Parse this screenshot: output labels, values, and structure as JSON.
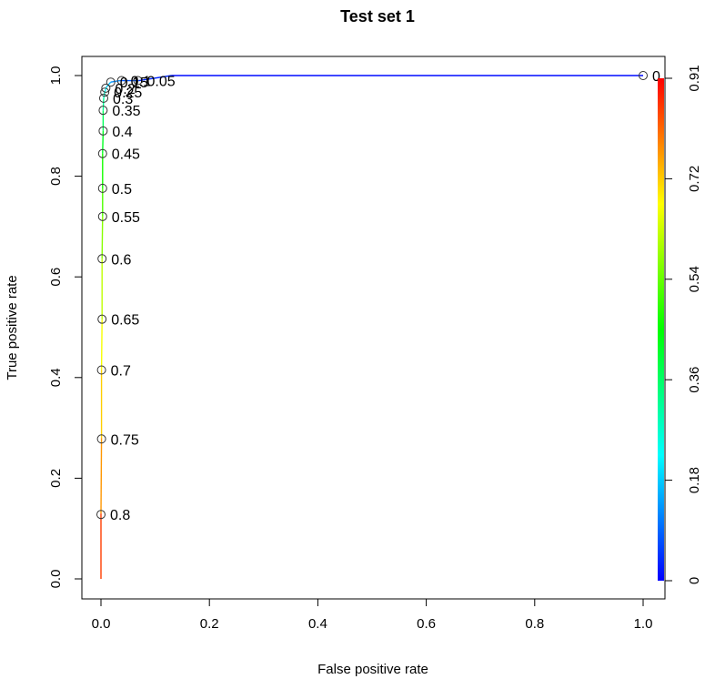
{
  "chart_data": {
    "type": "line",
    "title": "Test set 1",
    "xlabel": "False positive rate",
    "ylabel": "True positive rate",
    "xlim": [
      0,
      1
    ],
    "ylim": [
      0,
      1
    ],
    "x_ticks": [
      "0.0",
      "0.2",
      "0.4",
      "0.6",
      "0.8",
      "1.0"
    ],
    "y_ticks": [
      "0.0",
      "0.2",
      "0.4",
      "0.6",
      "0.8",
      "1.0"
    ],
    "colorbar": {
      "range": [
        0,
        0.91
      ],
      "ticks": [
        "0",
        "0.18",
        "0.36",
        "0.54",
        "0.72",
        "0.91"
      ],
      "colors": [
        "#0000ff",
        "#00ffff",
        "#00ff00",
        "#ffff00",
        "#ff0000"
      ]
    },
    "curve": [
      {
        "x": 0.0,
        "y": 0.0,
        "cutoff": 0.91
      },
      {
        "x": 0.0,
        "y": 0.13,
        "cutoff": 0.8
      },
      {
        "x": 0.001,
        "y": 0.28,
        "cutoff": 0.75
      },
      {
        "x": 0.001,
        "y": 0.415,
        "cutoff": 0.7
      },
      {
        "x": 0.002,
        "y": 0.515,
        "cutoff": 0.65
      },
      {
        "x": 0.002,
        "y": 0.636,
        "cutoff": 0.6
      },
      {
        "x": 0.003,
        "y": 0.72,
        "cutoff": 0.55
      },
      {
        "x": 0.003,
        "y": 0.775,
        "cutoff": 0.5
      },
      {
        "x": 0.003,
        "y": 0.845,
        "cutoff": 0.45
      },
      {
        "x": 0.004,
        "y": 0.89,
        "cutoff": 0.4
      },
      {
        "x": 0.004,
        "y": 0.93,
        "cutoff": 0.35
      },
      {
        "x": 0.005,
        "y": 0.955,
        "cutoff": 0.3
      },
      {
        "x": 0.007,
        "y": 0.967,
        "cutoff": 0.25
      },
      {
        "x": 0.01,
        "y": 0.977,
        "cutoff": 0.2
      },
      {
        "x": 0.018,
        "y": 0.987,
        "cutoff": 0.15
      },
      {
        "x": 0.035,
        "y": 0.99,
        "cutoff": 0.1
      },
      {
        "x": 0.07,
        "y": 0.99,
        "cutoff": 0.05
      },
      {
        "x": 0.13,
        "y": 1.0,
        "cutoff": 0.02
      },
      {
        "x": 1.0,
        "y": 1.0,
        "cutoff": 0
      }
    ],
    "points": [
      {
        "x": 0.0,
        "y": 0.128,
        "label": "0.8"
      },
      {
        "x": 0.001,
        "y": 0.278,
        "label": "0.75"
      },
      {
        "x": 0.001,
        "y": 0.415,
        "label": "0.7"
      },
      {
        "x": 0.002,
        "y": 0.516,
        "label": "0.65"
      },
      {
        "x": 0.002,
        "y": 0.636,
        "label": "0.6"
      },
      {
        "x": 0.003,
        "y": 0.72,
        "label": "0.55"
      },
      {
        "x": 0.003,
        "y": 0.776,
        "label": "0.5"
      },
      {
        "x": 0.003,
        "y": 0.845,
        "label": "0.45"
      },
      {
        "x": 0.004,
        "y": 0.89,
        "label": "0.4"
      },
      {
        "x": 0.004,
        "y": 0.931,
        "label": "0.35"
      },
      {
        "x": 0.005,
        "y": 0.955,
        "label": "0.3"
      },
      {
        "x": 0.007,
        "y": 0.967,
        "label": "0.25"
      },
      {
        "x": 0.009,
        "y": 0.975,
        "label": "0.2"
      },
      {
        "x": 0.018,
        "y": 0.987,
        "label": "0.15"
      },
      {
        "x": 0.038,
        "y": 0.99,
        "label": "0.1"
      },
      {
        "x": 0.068,
        "y": 0.99,
        "label": "0.05"
      },
      {
        "x": 1.0,
        "y": 1.0,
        "label": "0"
      }
    ]
  }
}
